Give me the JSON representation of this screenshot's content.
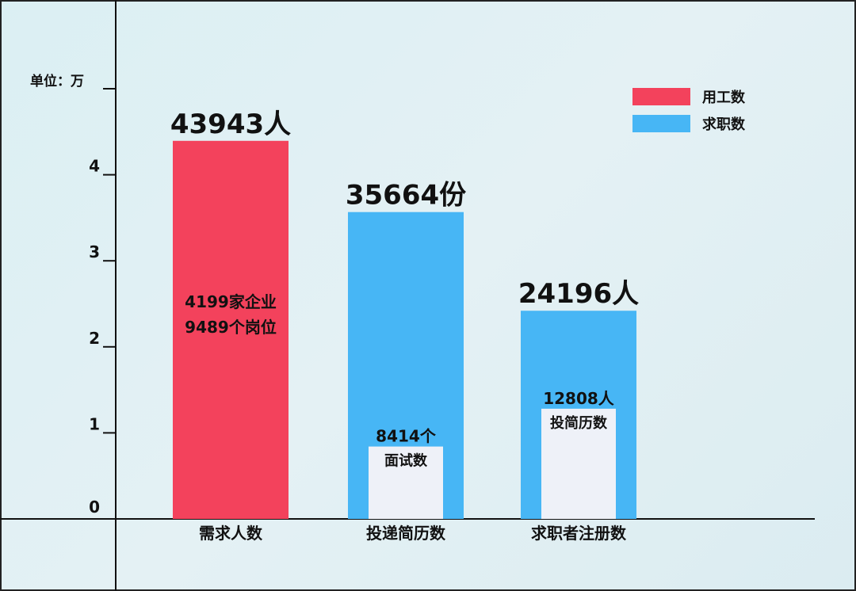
{
  "chart_data": {
    "type": "bar",
    "unit_label": "单位：万",
    "yticks": [
      "0",
      "1",
      "2",
      "3",
      "4"
    ],
    "ylim": [
      0,
      5
    ],
    "legend": {
      "placement": "top-right",
      "items": [
        {
          "name": "用工数",
          "color": "#f3425c"
        },
        {
          "name": "求职数",
          "color": "#47b6f5"
        }
      ]
    },
    "categories": [
      "需求人数",
      "投递简历数",
      "求职者注册数"
    ],
    "bars": [
      {
        "category": "需求人数",
        "value": 43943,
        "label": "43943人",
        "series": "用工数",
        "color": "#f3425c",
        "inner_text": [
          "4199家企业",
          "9489个岗位"
        ]
      },
      {
        "category": "投递简历数",
        "value": 35664,
        "label": "35664份",
        "series": "求职数",
        "color": "#47b6f5",
        "sub": {
          "value": 8414,
          "label": "8414个",
          "caption": "面试数",
          "color": "#eef1f8"
        }
      },
      {
        "category": "求职者注册数",
        "value": 24196,
        "label": "24196人",
        "series": "求职数",
        "color": "#47b6f5",
        "sub": {
          "value": 12808,
          "label": "12808人",
          "caption": "投简历数",
          "color": "#eef1f8"
        }
      }
    ]
  }
}
